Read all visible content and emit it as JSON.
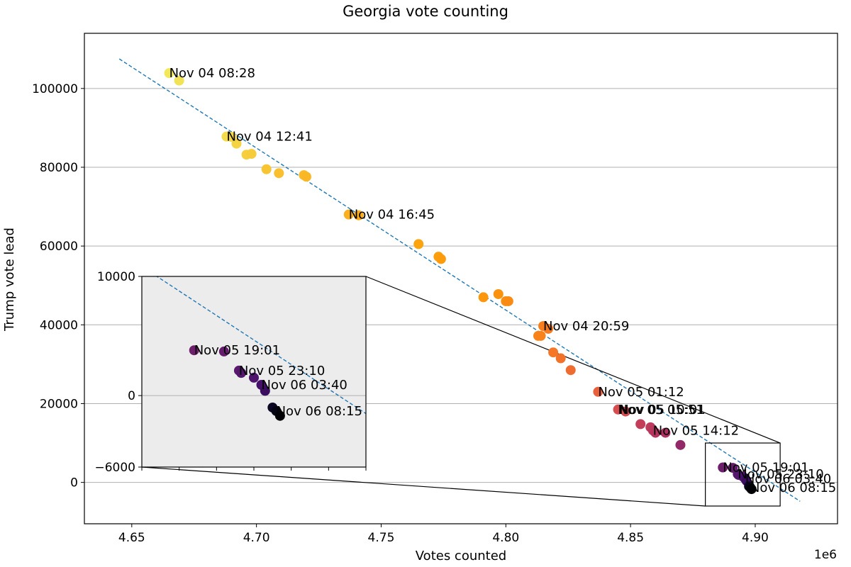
{
  "chart_data": {
    "type": "scatter",
    "title": "Georgia vote counting",
    "xlabel": "Votes counted",
    "ylabel": "Trump vote lead",
    "x_offset_label": "1e6",
    "grid": "horizontal",
    "xlim": [
      4631000,
      4933000
    ],
    "ylim": [
      -10500,
      114000
    ],
    "x_ticks": [
      4650000,
      4700000,
      4750000,
      4800000,
      4850000,
      4900000
    ],
    "x_tick_labels": [
      "4.65",
      "4.70",
      "4.75",
      "4.80",
      "4.85",
      "4.90"
    ],
    "y_ticks": [
      0,
      20000,
      40000,
      60000,
      80000,
      100000
    ],
    "y_tick_labels": [
      "0",
      "20000",
      "40000",
      "60000",
      "80000",
      "100000"
    ],
    "trend_line": {
      "x": [
        4645000,
        4918000
      ],
      "y": [
        107500,
        -4800
      ]
    },
    "points": [
      {
        "x": 4665000,
        "y": 103900,
        "color": "#f1e95a"
      },
      {
        "x": 4669000,
        "y": 102000,
        "color": "#f2e356"
      },
      {
        "x": 4688000,
        "y": 87800,
        "color": "#f4db4b"
      },
      {
        "x": 4690000,
        "y": 87700,
        "color": "#f4d847"
      },
      {
        "x": 4692000,
        "y": 86000,
        "color": "#f5d444"
      },
      {
        "x": 4696000,
        "y": 83200,
        "color": "#f6cf3e"
      },
      {
        "x": 4698000,
        "y": 83400,
        "color": "#f6cc3a"
      },
      {
        "x": 4704000,
        "y": 79500,
        "color": "#f8c532"
      },
      {
        "x": 4709000,
        "y": 78500,
        "color": "#f9bf2c"
      },
      {
        "x": 4719000,
        "y": 78000,
        "color": "#faba27"
      },
      {
        "x": 4720000,
        "y": 77600,
        "color": "#fab725"
      },
      {
        "x": 4737000,
        "y": 68000,
        "color": "#fcb01d"
      },
      {
        "x": 4741000,
        "y": 67800,
        "color": "#fcac1a"
      },
      {
        "x": 4765000,
        "y": 60500,
        "color": "#fca40f"
      },
      {
        "x": 4773000,
        "y": 57300,
        "color": "#fc9f0d"
      },
      {
        "x": 4774000,
        "y": 56700,
        "color": "#fc9c0c"
      },
      {
        "x": 4791000,
        "y": 47000,
        "color": "#fb960d"
      },
      {
        "x": 4797000,
        "y": 47800,
        "color": "#fb920e"
      },
      {
        "x": 4800000,
        "y": 46000,
        "color": "#fa8e10"
      },
      {
        "x": 4801000,
        "y": 46000,
        "color": "#fa8b12"
      },
      {
        "x": 4813000,
        "y": 37200,
        "color": "#f88418"
      },
      {
        "x": 4814000,
        "y": 37200,
        "color": "#f8811a"
      },
      {
        "x": 4815000,
        "y": 39700,
        "color": "#f77e1d"
      },
      {
        "x": 4817000,
        "y": 39000,
        "color": "#f67b20"
      },
      {
        "x": 4819000,
        "y": 33000,
        "color": "#f47626"
      },
      {
        "x": 4822000,
        "y": 31500,
        "color": "#f2722a"
      },
      {
        "x": 4826000,
        "y": 28500,
        "color": "#ef6c31"
      },
      {
        "x": 4837000,
        "y": 23000,
        "color": "#e9603d"
      },
      {
        "x": 4845000,
        "y": 18500,
        "color": "#d74c4f"
      },
      {
        "x": 4848000,
        "y": 18000,
        "color": "#d34a51"
      },
      {
        "x": 4854000,
        "y": 14800,
        "color": "#c33e59"
      },
      {
        "x": 4858000,
        "y": 14000,
        "color": "#bd3b5c"
      },
      {
        "x": 4859000,
        "y": 13200,
        "color": "#b9385e"
      },
      {
        "x": 4860000,
        "y": 12600,
        "color": "#b3355f"
      },
      {
        "x": 4864000,
        "y": 12600,
        "color": "#ab3262"
      },
      {
        "x": 4870000,
        "y": 9500,
        "color": "#912a66"
      },
      {
        "x": 4887000,
        "y": 3800,
        "color": "#6d1f6c"
      },
      {
        "x": 4891000,
        "y": 3700,
        "color": "#651c6d"
      },
      {
        "x": 4893000,
        "y": 2100,
        "color": "#5b196e"
      },
      {
        "x": 4893300,
        "y": 1900,
        "color": "#55176e"
      },
      {
        "x": 4895000,
        "y": 1500,
        "color": "#4f146c"
      },
      {
        "x": 4896000,
        "y": 900,
        "color": "#46106a"
      },
      {
        "x": 4896500,
        "y": 400,
        "color": "#3a0d5e"
      },
      {
        "x": 4897500,
        "y": -1000,
        "color": "#0c0824"
      },
      {
        "x": 4898000,
        "y": -1300,
        "color": "#050414"
      },
      {
        "x": 4898500,
        "y": -1700,
        "color": "#000004"
      }
    ],
    "annotations": [
      {
        "text": "Nov 04 08:28",
        "x": 4665000,
        "y": 103900
      },
      {
        "text": "Nov 04 12:41",
        "x": 4688000,
        "y": 87800
      },
      {
        "text": "Nov 04 16:45",
        "x": 4737000,
        "y": 68000
      },
      {
        "text": "Nov 04 20:59",
        "x": 4815000,
        "y": 39700
      },
      {
        "text": "Nov 05 01:12",
        "x": 4837000,
        "y": 23000
      },
      {
        "text": "Nov 05 05:51",
        "x": 4845000,
        "y": 18500
      },
      {
        "text": "Nov 05 10:01",
        "x": 4845500,
        "y": 18500
      },
      {
        "text": "Nov 05 14:12",
        "x": 4859000,
        "y": 13200
      },
      {
        "text": "Nov 05 19:01",
        "x": 4887000,
        "y": 3800
      },
      {
        "text": "Nov 05 23:10",
        "x": 4893000,
        "y": 2100
      },
      {
        "text": "Nov 06 03:40",
        "x": 4896000,
        "y": 900
      },
      {
        "text": "Nov 06 08:15",
        "x": 4898000,
        "y": -1300
      }
    ],
    "inset": {
      "xlim": [
        4880000,
        4910000
      ],
      "ylim": [
        -6000,
        10000
      ],
      "y_tick_labels": [
        "10000",
        "0",
        "−6000"
      ],
      "background": "#ececec",
      "annotations": [
        "Nov 05 19:01",
        "Nov 05 23:10",
        "Nov 06 03:40",
        "Nov 06 08:15"
      ]
    }
  }
}
